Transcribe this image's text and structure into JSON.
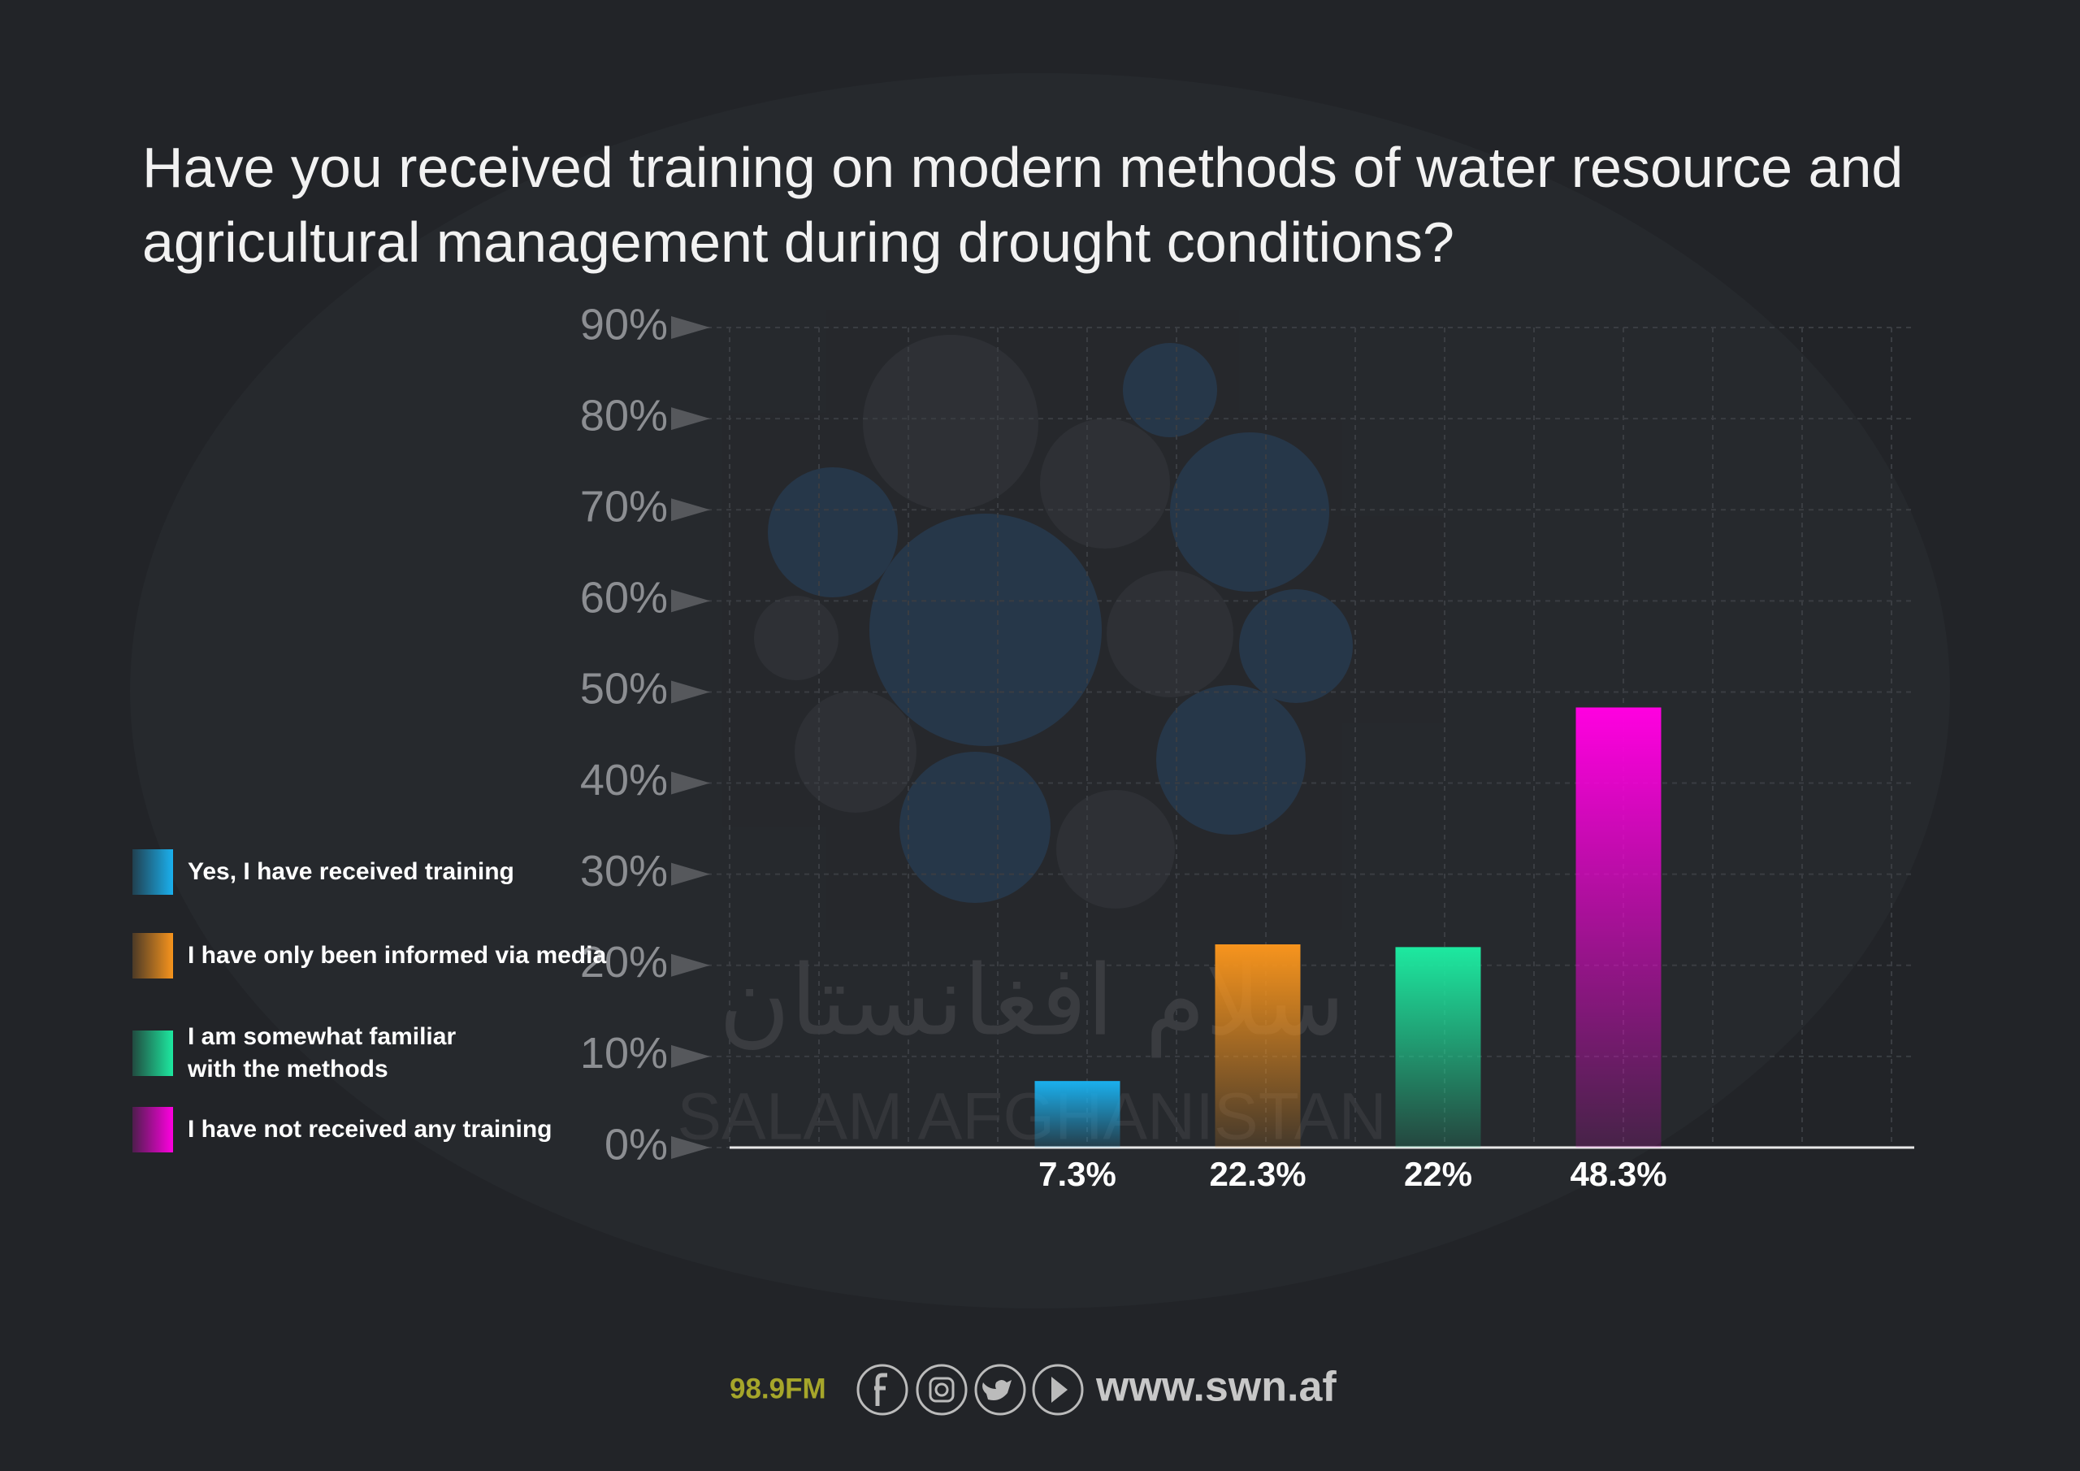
{
  "chart_data": {
    "type": "bar",
    "title": "Have you received training on modern methods of water resource and agricultural management during drought conditions?",
    "categories": [
      "Yes, I have received training",
      "I have only been informed via media",
      "I am somewhat familiar with the methods",
      "I have not received any training"
    ],
    "values": [
      7.3,
      22.3,
      22,
      48.3
    ],
    "value_labels": [
      "7.3%",
      "22.3%",
      "22%",
      "48.3%"
    ],
    "colors": [
      "#1ab0ee",
      "#f7941d",
      "#1de9a0",
      "#ff00e0"
    ],
    "ylim": [
      0,
      90
    ],
    "yticks": [
      {
        "value": 0,
        "label": "0%"
      },
      {
        "value": 10,
        "label": "10%"
      },
      {
        "value": 20,
        "label": "20%"
      },
      {
        "value": 30,
        "label": "30%"
      },
      {
        "value": 40,
        "label": "40%"
      },
      {
        "value": 50,
        "label": "50%"
      },
      {
        "value": 60,
        "label": "60%"
      },
      {
        "value": 70,
        "label": "70%"
      },
      {
        "value": 80,
        "label": "80%"
      },
      {
        "value": 90,
        "label": "90%"
      }
    ],
    "grid": true,
    "watermark": "SALAM AFGHANISTAN",
    "watermark_arabic": "سلام افغانستان",
    "footer": {
      "frequency": "98.9FM",
      "website": "www.swn.af"
    }
  }
}
